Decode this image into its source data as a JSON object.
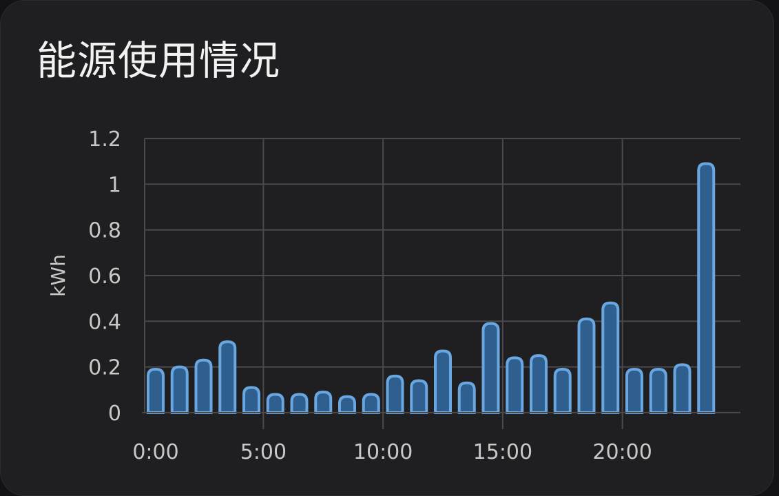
{
  "card": {
    "title": "能源使用情况"
  },
  "chart_data": {
    "type": "bar",
    "x": [
      0,
      1,
      2,
      3,
      4,
      5,
      6,
      7,
      8,
      9,
      10,
      11,
      12,
      13,
      14,
      15,
      16,
      17,
      18,
      19,
      20,
      21,
      22,
      23
    ],
    "values": [
      0.19,
      0.2,
      0.23,
      0.31,
      0.11,
      0.08,
      0.08,
      0.09,
      0.07,
      0.08,
      0.16,
      0.14,
      0.27,
      0.13,
      0.39,
      0.24,
      0.25,
      0.19,
      0.41,
      0.48,
      0.19,
      0.19,
      0.21,
      1.09
    ],
    "x_tick_labels": [
      {
        "x": 0,
        "label": "0:00"
      },
      {
        "x": 5,
        "label": "5:00"
      },
      {
        "x": 10,
        "label": "10:00"
      },
      {
        "x": 15,
        "label": "15:00"
      },
      {
        "x": 20,
        "label": "20:00"
      }
    ],
    "y_ticks": [
      {
        "v": 0,
        "label": "0"
      },
      {
        "v": 0.2,
        "label": "0.2"
      },
      {
        "v": 0.4,
        "label": "0.4"
      },
      {
        "v": 0.6,
        "label": "0.6"
      },
      {
        "v": 0.8,
        "label": "0.8"
      },
      {
        "v": 1.0,
        "label": "1"
      },
      {
        "v": 1.2,
        "label": "1.2"
      }
    ],
    "ylabel": "kWh",
    "ylim": [
      0,
      1.2
    ],
    "grid": true,
    "colors": {
      "bar_fill": "#2f5f8e",
      "bar_stroke": "#6aa6e0"
    }
  }
}
